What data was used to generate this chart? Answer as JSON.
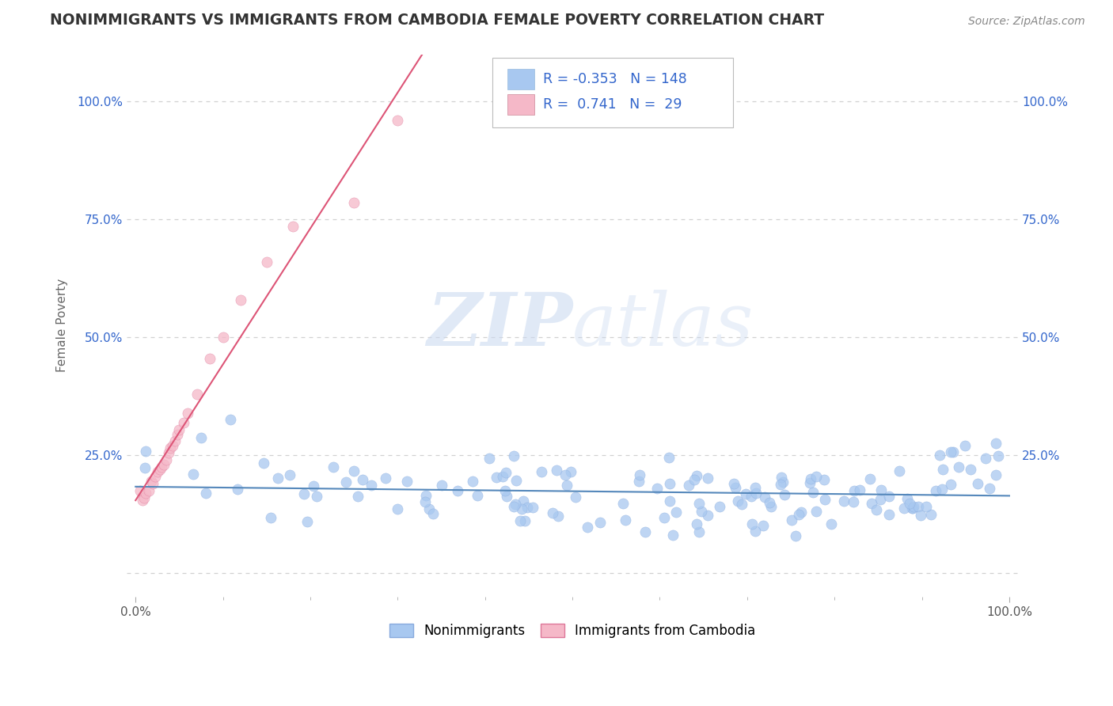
{
  "title": "NONIMMIGRANTS VS IMMIGRANTS FROM CAMBODIA FEMALE POVERTY CORRELATION CHART",
  "source": "Source: ZipAtlas.com",
  "ylabel": "Female Poverty",
  "background_color": "#ffffff",
  "grid_color": "#cccccc",
  "r_nonimm": -0.353,
  "n_nonimm": 148,
  "r_imm": 0.741,
  "n_imm": 29,
  "nonimm_color": "#a8c8f0",
  "nonimm_edge_color": "#88aadd",
  "nonimm_line_color": "#5588bb",
  "imm_color": "#f5b8c8",
  "imm_edge_color": "#dd7799",
  "imm_line_color": "#dd5577",
  "legend_text_color": "#3366cc",
  "tick_color": "#3366cc",
  "ylabel_color": "#666666",
  "title_color": "#333333",
  "source_color": "#888888",
  "watermark_color": "#c8d8f0",
  "xlim": [
    0.0,
    1.0
  ],
  "ylim": [
    -0.05,
    1.1
  ],
  "imm_x": [
    0.005,
    0.008,
    0.01,
    0.012,
    0.015,
    0.018,
    0.02,
    0.022,
    0.025,
    0.028,
    0.03,
    0.032,
    0.035,
    0.038,
    0.04,
    0.042,
    0.045,
    0.048,
    0.05,
    0.055,
    0.06,
    0.07,
    0.085,
    0.1,
    0.12,
    0.15,
    0.18,
    0.25,
    0.3
  ],
  "imm_y": [
    0.175,
    0.155,
    0.16,
    0.17,
    0.175,
    0.195,
    0.19,
    0.205,
    0.215,
    0.22,
    0.225,
    0.23,
    0.24,
    0.255,
    0.265,
    0.27,
    0.28,
    0.295,
    0.305,
    0.32,
    0.34,
    0.38,
    0.455,
    0.5,
    0.58,
    0.66,
    0.735,
    0.785,
    0.96
  ]
}
